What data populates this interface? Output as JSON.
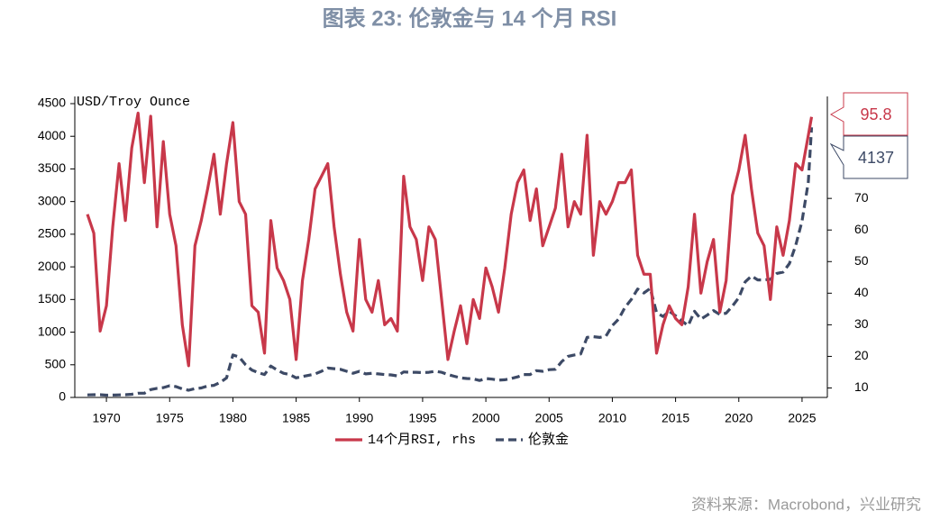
{
  "chart_data": {
    "type": "line",
    "title": "图表 23: 伦敦金与 14 个月 RSI",
    "y_label": "USD/Troy Ounce",
    "source": "资料来源：Macrobond，兴业研究",
    "x": [
      1968.5,
      1969,
      1969.5,
      1970,
      1970.5,
      1971,
      1971.5,
      1972,
      1972.5,
      1973,
      1973.5,
      1974,
      1974.5,
      1975,
      1975.5,
      1976,
      1976.5,
      1977,
      1977.5,
      1978,
      1978.5,
      1979,
      1979.5,
      1980,
      1980.5,
      1981,
      1981.5,
      1982,
      1982.5,
      1983,
      1983.5,
      1984,
      1984.5,
      1985,
      1985.5,
      1986,
      1986.5,
      1987,
      1987.5,
      1988,
      1988.5,
      1989,
      1989.5,
      1990,
      1990.5,
      1991,
      1991.5,
      1992,
      1992.5,
      1993,
      1993.5,
      1994,
      1994.5,
      1995,
      1995.5,
      1996,
      1996.5,
      1997,
      1997.5,
      1998,
      1998.5,
      1999,
      1999.5,
      2000,
      2000.5,
      2001,
      2001.5,
      2002,
      2002.5,
      2003,
      2003.5,
      2004,
      2004.5,
      2005,
      2005.5,
      2006,
      2006.5,
      2007,
      2007.5,
      2008,
      2008.5,
      2009,
      2009.5,
      2010,
      2010.5,
      2011,
      2011.5,
      2012,
      2012.5,
      2013,
      2013.5,
      2014,
      2014.5,
      2015,
      2015.5,
      2016,
      2016.5,
      2017,
      2017.5,
      2018,
      2018.5,
      2019,
      2019.5,
      2020,
      2020.5,
      2021,
      2021.5,
      2022,
      2022.5,
      2023,
      2023.5,
      2024,
      2024.5,
      2025,
      2025.5,
      2025.75
    ],
    "series": [
      {
        "name": "14个月RSI, rhs",
        "color": "#c8384a",
        "style": "solid",
        "axis": "y2",
        "values": [
          65,
          59,
          28,
          36,
          61,
          81,
          63,
          86,
          97,
          75,
          96,
          61,
          88,
          65,
          55,
          30,
          17,
          55,
          63,
          73,
          84,
          65,
          81,
          94,
          69,
          65,
          36,
          34,
          21,
          63,
          48,
          44,
          38,
          19,
          44,
          57,
          73,
          77,
          81,
          61,
          46,
          34,
          28,
          57,
          38,
          34,
          44,
          30,
          32,
          28,
          77,
          61,
          57,
          44,
          61,
          57,
          38,
          19,
          28,
          36,
          24,
          38,
          32,
          48,
          42,
          34,
          48,
          65,
          75,
          79,
          63,
          73,
          55,
          61,
          67,
          84,
          61,
          69,
          65,
          90,
          52,
          69,
          65,
          69,
          75,
          75,
          79,
          52,
          46,
          46,
          21,
          30,
          36,
          32,
          30,
          42,
          65,
          40,
          50,
          57,
          34,
          44,
          71,
          79,
          90,
          73,
          59,
          55,
          38,
          61,
          52,
          63,
          81,
          79,
          90,
          95.8
        ]
      },
      {
        "name": "伦敦金",
        "color": "#3d4a66",
        "style": "dashed",
        "values": [
          39,
          42,
          41,
          35,
          36,
          38,
          41,
          48,
          65,
          65,
          120,
          140,
          150,
          180,
          165,
          130,
          110,
          135,
          145,
          175,
          185,
          230,
          300,
          650,
          620,
          500,
          420,
          380,
          350,
          480,
          420,
          370,
          350,
          300,
          320,
          340,
          360,
          400,
          450,
          440,
          430,
          400,
          370,
          400,
          360,
          370,
          360,
          350,
          345,
          330,
          390,
          385,
          385,
          380,
          385,
          400,
          385,
          350,
          325,
          300,
          290,
          285,
          260,
          290,
          280,
          265,
          270,
          290,
          315,
          350,
          350,
          410,
          400,
          425,
          430,
          550,
          630,
          650,
          665,
          920,
          930,
          920,
          940,
          1100,
          1200,
          1380,
          1500,
          1660,
          1600,
          1670,
          1300,
          1240,
          1320,
          1250,
          1170,
          1100,
          1320,
          1200,
          1260,
          1330,
          1270,
          1290,
          1400,
          1530,
          1770,
          1860,
          1800,
          1800,
          1810,
          1900,
          1920,
          2050,
          2330,
          2700,
          3300,
          4137
        ]
      }
    ],
    "xlim": [
      1967.5,
      2027
    ],
    "xticks": [
      1970,
      1975,
      1980,
      1985,
      1990,
      1995,
      2000,
      2005,
      2010,
      2015,
      2020,
      2025
    ],
    "ylim": [
      0,
      4500
    ],
    "yticks": [
      0,
      500,
      1000,
      1500,
      2000,
      2500,
      3000,
      3500,
      4000,
      4500
    ],
    "y2lim": [
      7,
      100
    ],
    "y2ticks": [
      10,
      20,
      30,
      40,
      50,
      60,
      70
    ],
    "grid": false,
    "legend": "bottom"
  }
}
